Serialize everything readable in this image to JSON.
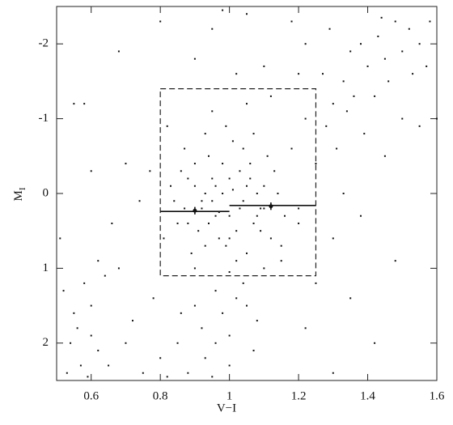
{
  "chart_data": {
    "type": "scatter",
    "x_label": "V−I",
    "y_label": "M",
    "y_label_sub": "I",
    "color": "#111111",
    "xlim": [
      0.5,
      1.6
    ],
    "xticks": [
      0.6,
      0.8,
      1,
      1.2,
      1.4,
      1.6
    ],
    "ylim": [
      2.5,
      -2.5
    ],
    "yticks": [
      -2,
      -1,
      0,
      1,
      2
    ],
    "x": [
      0.84,
      0.86,
      0.88,
      0.9,
      0.92,
      0.94,
      0.96,
      0.98,
      1.0,
      1.02,
      1.04,
      1.06,
      1.08,
      1.1,
      1.12,
      1.14,
      0.87,
      0.91,
      0.95,
      0.99,
      1.03,
      1.07,
      1.11,
      0.89,
      0.93,
      0.97,
      1.01,
      1.05,
      1.09,
      1.13,
      0.85,
      0.9,
      0.95,
      1.0,
      1.05,
      1.1,
      0.88,
      0.93,
      0.98,
      1.03,
      1.08,
      0.92,
      0.96,
      1.0,
      1.04,
      0.94,
      0.99,
      1.02,
      1.06,
      0.97,
      1.01,
      0.83,
      1.16,
      1.18,
      0.81,
      1.2,
      0.95,
      1.05,
      0.9,
      1.15,
      1.22,
      0.82,
      1.0,
      1.12,
      0.87,
      1.09,
      0.93,
      1.07,
      0.88,
      0.93,
      0.96,
      0.92,
      1.0,
      0.98,
      1.02,
      0.96,
      1.05,
      1.04,
      1.0,
      0.95,
      1.08,
      0.9,
      1.07,
      1.1,
      1.15,
      1.2,
      1.25,
      1.28,
      1.3,
      1.33,
      1.36,
      1.4,
      1.38,
      1.43,
      1.45,
      1.48,
      1.5,
      1.52,
      1.55,
      1.57,
      1.58,
      1.44,
      1.35,
      1.31,
      1.27,
      1.42,
      1.46,
      1.53,
      1.5,
      1.29,
      1.22,
      1.18,
      1.34,
      1.39,
      0.52,
      0.55,
      0.54,
      0.57,
      0.6,
      0.58,
      0.62,
      0.53,
      0.56,
      0.65,
      0.6,
      0.7,
      0.75,
      0.72,
      0.68,
      0.64,
      0.51,
      0.59,
      0.8,
      0.85,
      0.78,
      0.82,
      0.55,
      0.58,
      0.68,
      0.66,
      0.74,
      0.7,
      0.77,
      0.6,
      0.8,
      0.9,
      0.95,
      1.05,
      1.1,
      1.02,
      0.98,
      1.2,
      0.86,
      0.62,
      1.3,
      1.38,
      1.45,
      1.55,
      1.48,
      1.35,
      1.42,
      1.6,
      1.3,
      1.22,
      1.25,
      1.33
    ],
    "values": [
      0.1,
      -0.3,
      0.4,
      -0.1,
      0.2,
      -0.5,
      0.3,
      0.0,
      -0.2,
      0.5,
      0.1,
      -0.4,
      0.3,
      -0.1,
      0.6,
      0.0,
      -0.6,
      0.5,
      -0.2,
      0.7,
      -0.3,
      0.4,
      -0.5,
      0.8,
      -0.8,
      0.6,
      -0.7,
      0.8,
      0.2,
      -0.3,
      0.4,
      -0.4,
      0.1,
      0.3,
      -0.1,
      0.2,
      -0.2,
      0.0,
      -0.4,
      0.2,
      0.0,
      0.1,
      -0.1,
      0.6,
      -0.6,
      0.4,
      -0.9,
      0.9,
      -0.2,
      0.25,
      -0.05,
      -0.1,
      0.3,
      -0.6,
      0.6,
      0.4,
      -1.1,
      -1.2,
      1.0,
      0.9,
      -1.0,
      -0.9,
      1.05,
      -1.3,
      0.2,
      0.5,
      0.7,
      -0.8,
      2.4,
      2.2,
      2.0,
      1.8,
      1.9,
      1.6,
      1.4,
      1.3,
      1.5,
      1.2,
      2.3,
      2.45,
      1.7,
      1.5,
      2.1,
      1.0,
      0.7,
      0.2,
      -0.4,
      -0.9,
      -1.2,
      -1.5,
      -1.3,
      -1.7,
      -2.0,
      -2.1,
      -1.8,
      -2.3,
      -1.9,
      -2.2,
      -2.0,
      -1.7,
      -2.3,
      -2.35,
      -1.9,
      -0.6,
      -1.6,
      -1.3,
      -1.5,
      -1.6,
      -1.0,
      -2.2,
      -2.0,
      -2.3,
      -1.1,
      -0.8,
      1.3,
      1.6,
      2.0,
      2.3,
      1.9,
      1.2,
      2.1,
      2.4,
      1.8,
      2.3,
      1.5,
      2.0,
      2.4,
      1.7,
      1.0,
      1.1,
      0.6,
      2.45,
      2.2,
      2.0,
      1.4,
      2.45,
      -1.2,
      -1.2,
      -1.9,
      0.4,
      0.1,
      -0.4,
      -0.3,
      -0.3,
      -2.3,
      -1.8,
      -2.2,
      -2.4,
      -1.7,
      -1.6,
      -2.45,
      -1.6,
      1.6,
      0.9,
      0.6,
      0.3,
      -0.5,
      -0.9,
      0.9,
      1.4,
      2.0,
      -1.0,
      2.4,
      1.8,
      1.2,
      0.0
    ],
    "box": {
      "x": [
        0.8,
        1.25
      ],
      "y": [
        -1.4,
        1.1
      ]
    },
    "fit_lines": [
      {
        "x": [
          0.8,
          1.0
        ],
        "y": [
          0.24,
          0.24
        ]
      },
      {
        "x": [
          1.0,
          1.25
        ],
        "y": [
          0.16,
          0.16
        ]
      }
    ],
    "error_points": [
      {
        "x": 0.9,
        "y": 0.23,
        "yerr": 0.05
      },
      {
        "x": 1.12,
        "y": 0.17,
        "yerr": 0.05
      }
    ]
  }
}
